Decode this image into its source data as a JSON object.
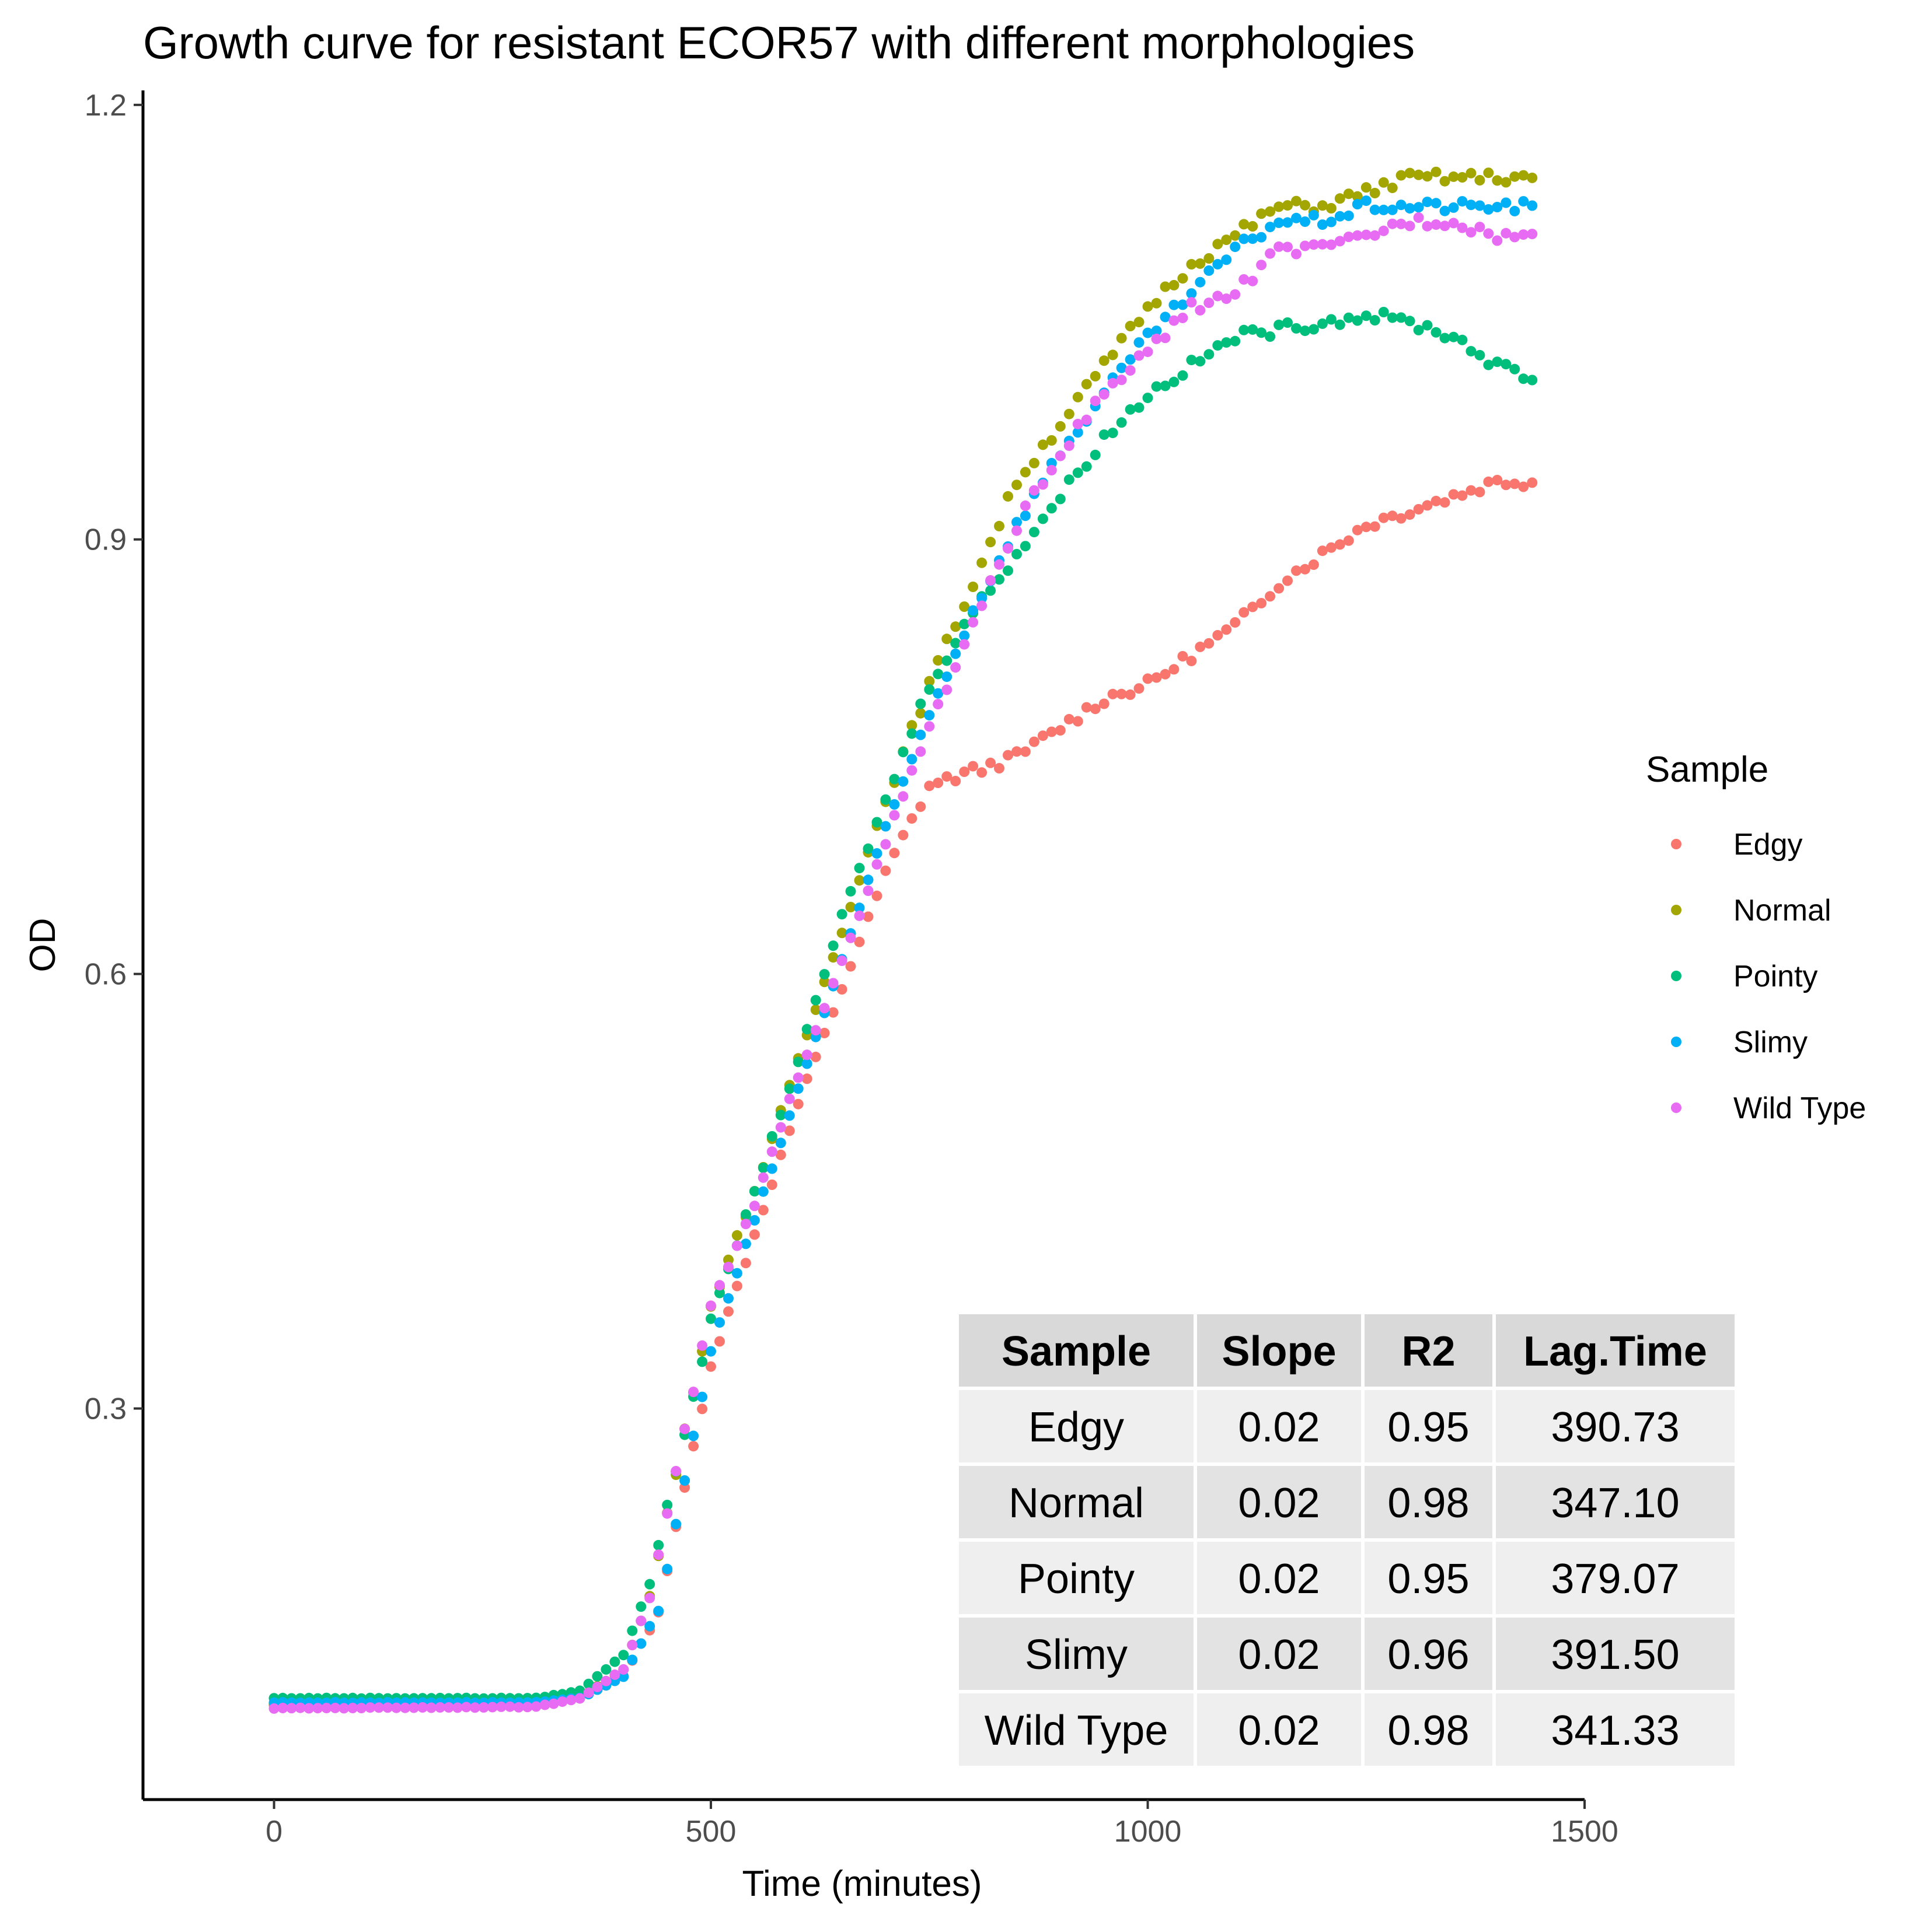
{
  "chart_data": {
    "type": "scatter",
    "title": "Growth curve for resistant ECOR57 with different morphologies",
    "xlabel": "Time (minutes)",
    "ylabel": "OD",
    "xlim": [
      -150,
      1500
    ],
    "ylim": [
      0.03,
      1.21
    ],
    "x_ticks": [
      0,
      500,
      1000,
      1500
    ],
    "y_ticks": [
      0.3,
      0.6,
      0.9,
      1.2
    ],
    "x_tick_labels": [
      "0",
      "500",
      "1000",
      "1500"
    ],
    "y_tick_labels": [
      "0.3",
      "0.6",
      "0.9",
      "1.2"
    ],
    "grid": false,
    "legend_title": "Sample",
    "legend_position": "right",
    "sampling_interval_minutes": 10,
    "series": [
      {
        "name": "Edgy",
        "color": "#F8766D",
        "anchors": [
          [
            0,
            0.095
          ],
          [
            300,
            0.095
          ],
          [
            350,
            0.1
          ],
          [
            400,
            0.115
          ],
          [
            440,
            0.16
          ],
          [
            500,
            0.33
          ],
          [
            550,
            0.42
          ],
          [
            600,
            0.51
          ],
          [
            650,
            0.59
          ],
          [
            700,
            0.67
          ],
          [
            750,
            0.73
          ],
          [
            800,
            0.74
          ],
          [
            850,
            0.75
          ],
          [
            900,
            0.77
          ],
          [
            950,
            0.79
          ],
          [
            1000,
            0.8
          ],
          [
            1050,
            0.82
          ],
          [
            1100,
            0.84
          ],
          [
            1150,
            0.87
          ],
          [
            1200,
            0.89
          ],
          [
            1250,
            0.91
          ],
          [
            1300,
            0.92
          ],
          [
            1350,
            0.93
          ],
          [
            1400,
            0.94
          ],
          [
            1440,
            0.94
          ]
        ]
      },
      {
        "name": "Normal",
        "color": "#A3A500",
        "anchors": [
          [
            0,
            0.096
          ],
          [
            300,
            0.097
          ],
          [
            350,
            0.1
          ],
          [
            400,
            0.12
          ],
          [
            430,
            0.17
          ],
          [
            500,
            0.37
          ],
          [
            550,
            0.45
          ],
          [
            600,
            0.54
          ],
          [
            650,
            0.63
          ],
          [
            700,
            0.72
          ],
          [
            750,
            0.8
          ],
          [
            800,
            0.87
          ],
          [
            850,
            0.94
          ],
          [
            900,
            0.98
          ],
          [
            950,
            1.02
          ],
          [
            1000,
            1.06
          ],
          [
            1050,
            1.09
          ],
          [
            1100,
            1.11
          ],
          [
            1150,
            1.13
          ],
          [
            1200,
            1.13
          ],
          [
            1250,
            1.14
          ],
          [
            1300,
            1.15
          ],
          [
            1350,
            1.15
          ],
          [
            1400,
            1.15
          ],
          [
            1440,
            1.15
          ]
        ]
      },
      {
        "name": "Pointy",
        "color": "#00BF7D",
        "anchors": [
          [
            0,
            0.1
          ],
          [
            300,
            0.1
          ],
          [
            350,
            0.105
          ],
          [
            400,
            0.13
          ],
          [
            430,
            0.18
          ],
          [
            500,
            0.36
          ],
          [
            550,
            0.45
          ],
          [
            600,
            0.54
          ],
          [
            650,
            0.64
          ],
          [
            700,
            0.72
          ],
          [
            750,
            0.8
          ],
          [
            800,
            0.85
          ],
          [
            850,
            0.89
          ],
          [
            900,
            0.93
          ],
          [
            950,
            0.97
          ],
          [
            1000,
            1.0
          ],
          [
            1050,
            1.02
          ],
          [
            1100,
            1.04
          ],
          [
            1150,
            1.045
          ],
          [
            1200,
            1.05
          ],
          [
            1250,
            1.055
          ],
          [
            1300,
            1.05
          ],
          [
            1350,
            1.04
          ],
          [
            1400,
            1.02
          ],
          [
            1440,
            1.01
          ]
        ]
      },
      {
        "name": "Slimy",
        "color": "#00B0F6",
        "anchors": [
          [
            0,
            0.097
          ],
          [
            300,
            0.097
          ],
          [
            350,
            0.1
          ],
          [
            400,
            0.115
          ],
          [
            440,
            0.16
          ],
          [
            500,
            0.34
          ],
          [
            550,
            0.43
          ],
          [
            600,
            0.52
          ],
          [
            650,
            0.61
          ],
          [
            700,
            0.7
          ],
          [
            750,
            0.78
          ],
          [
            800,
            0.85
          ],
          [
            850,
            0.91
          ],
          [
            900,
            0.96
          ],
          [
            950,
            1.0
          ],
          [
            1000,
            1.04
          ],
          [
            1050,
            1.07
          ],
          [
            1100,
            1.1
          ],
          [
            1150,
            1.12
          ],
          [
            1200,
            1.12
          ],
          [
            1250,
            1.13
          ],
          [
            1300,
            1.13
          ],
          [
            1350,
            1.13
          ],
          [
            1400,
            1.13
          ],
          [
            1440,
            1.13
          ]
        ]
      },
      {
        "name": "Wild Type",
        "color": "#E76BF3",
        "anchors": [
          [
            0,
            0.093
          ],
          [
            300,
            0.094
          ],
          [
            350,
            0.1
          ],
          [
            400,
            0.12
          ],
          [
            430,
            0.17
          ],
          [
            500,
            0.37
          ],
          [
            550,
            0.44
          ],
          [
            600,
            0.53
          ],
          [
            650,
            0.61
          ],
          [
            700,
            0.69
          ],
          [
            750,
            0.77
          ],
          [
            800,
            0.84
          ],
          [
            850,
            0.91
          ],
          [
            900,
            0.96
          ],
          [
            950,
            1.0
          ],
          [
            1000,
            1.03
          ],
          [
            1050,
            1.06
          ],
          [
            1100,
            1.07
          ],
          [
            1150,
            1.1
          ],
          [
            1200,
            1.1
          ],
          [
            1250,
            1.11
          ],
          [
            1300,
            1.12
          ],
          [
            1350,
            1.12
          ],
          [
            1400,
            1.11
          ],
          [
            1440,
            1.11
          ]
        ]
      }
    ],
    "table": {
      "headers": [
        "Sample",
        "Slope",
        "R2",
        "Lag.Time"
      ],
      "rows": [
        [
          "Edgy",
          "0.02",
          "0.95",
          "390.73"
        ],
        [
          "Normal",
          "0.02",
          "0.98",
          "347.10"
        ],
        [
          "Pointy",
          "0.02",
          "0.95",
          "379.07"
        ],
        [
          "Slimy",
          "0.02",
          "0.96",
          "391.50"
        ],
        [
          "Wild Type",
          "0.02",
          "0.98",
          "341.33"
        ]
      ],
      "header_color": "#d9d9d9",
      "row_colors": [
        "#efefef",
        "#e3e3e3"
      ]
    }
  }
}
